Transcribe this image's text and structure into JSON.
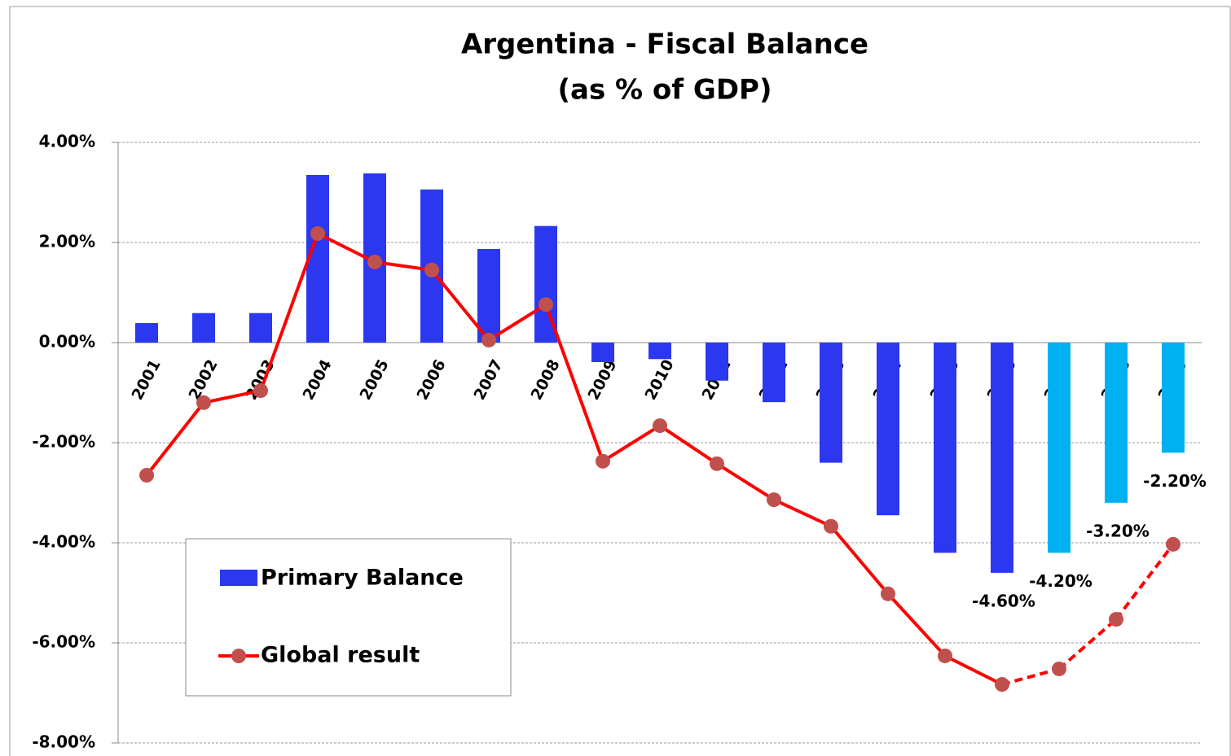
{
  "chart_data": {
    "type": "bar",
    "title": "Argentina - Fiscal Balance",
    "subtitle": "(as % of GDP)",
    "categories": [
      "2001",
      "2002",
      "2003",
      "2004",
      "2005",
      "2006",
      "2007",
      "2008",
      "2009",
      "2010",
      "2011",
      "2012",
      "2013",
      "2014",
      "2015",
      "2016",
      "2017",
      "2018",
      "2019"
    ],
    "series": [
      {
        "name": "Primary Balance",
        "type": "bar",
        "color": "#2b38f0",
        "colors": [
          "#2b38f0",
          "#2b38f0",
          "#2b38f0",
          "#2b38f0",
          "#2b38f0",
          "#2b38f0",
          "#2b38f0",
          "#2b38f0",
          "#2b38f0",
          "#2b38f0",
          "#2b38f0",
          "#2b38f0",
          "#2b38f0",
          "#2b38f0",
          "#2b38f0",
          "#2b38f0",
          "#00b0f0",
          "#00b0f0",
          "#00b0f0"
        ],
        "values": [
          0.39,
          0.59,
          0.59,
          3.35,
          3.38,
          3.06,
          1.87,
          2.33,
          -0.39,
          -0.33,
          -0.76,
          -1.19,
          -2.4,
          -3.45,
          -4.2,
          -4.6,
          -4.2,
          -3.2,
          -2.2
        ],
        "value_labels": [
          null,
          null,
          null,
          null,
          null,
          null,
          null,
          null,
          null,
          null,
          null,
          null,
          null,
          null,
          null,
          "-4.60%",
          "-4.20%",
          "-3.20%",
          "-2.20%"
        ]
      },
      {
        "name": "Global result",
        "type": "line",
        "color": "#ff0000",
        "marker_color": "#c0504d",
        "dashed_categories": [
          "2017",
          "2018",
          "2019"
        ],
        "values": [
          -2.65,
          -1.2,
          -0.96,
          2.18,
          1.61,
          1.45,
          0.05,
          0.76,
          -2.37,
          -1.66,
          -2.42,
          -3.14,
          -3.67,
          -5.02,
          -6.26,
          -6.83,
          -6.52,
          -5.53,
          -4.03
        ]
      }
    ],
    "ylim": [
      -8,
      4
    ],
    "yticks": [
      {
        "value": -8,
        "label": "-8.00%"
      },
      {
        "value": -6,
        "label": "-6.00%"
      },
      {
        "value": -4,
        "label": "-4.00%"
      },
      {
        "value": -2,
        "label": "-2.00%"
      },
      {
        "value": 0,
        "label": "0.00%"
      },
      {
        "value": 2,
        "label": "2.00%"
      },
      {
        "value": 4,
        "label": "4.00%"
      }
    ],
    "grid": true
  }
}
